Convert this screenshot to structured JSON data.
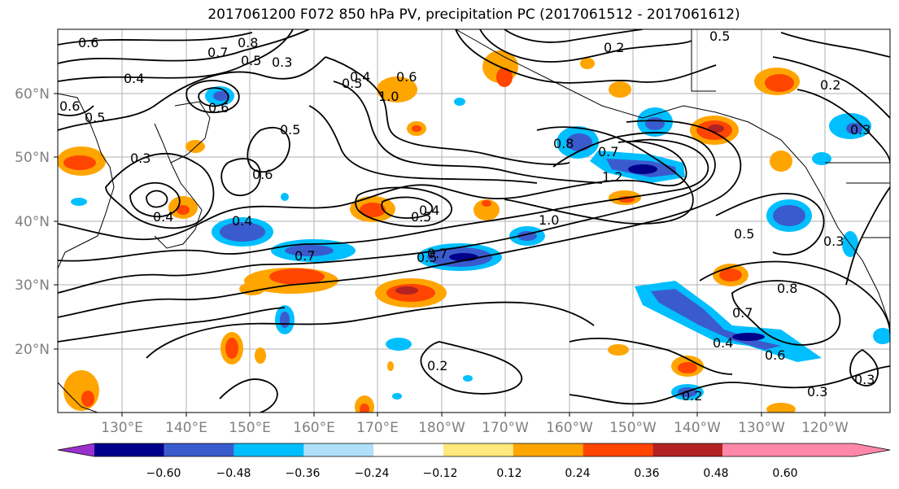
{
  "title": "2017061200 F072 850 hPa PV, precipitation PC (2017061512 - 2017061612)",
  "lat_labels": [
    "60°N",
    "50°N",
    "40°N",
    "30°N",
    "20°N"
  ],
  "lon_labels": [
    "130°E",
    "140°E",
    "150°E",
    "160°E",
    "170°E",
    "180°W",
    "170°W",
    "160°W",
    "150°W",
    "140°W",
    "130°W",
    "120°W"
  ],
  "colorbar": {
    "colors": [
      "#9932cc",
      "#00008b",
      "#3a5bcd",
      "#00bfff",
      "#b0e0fa",
      "#ffffff",
      "#ffe87c",
      "#ffa500",
      "#ff4500",
      "#b22222",
      "#ff88aa"
    ],
    "ticks": [
      "−0.60",
      "−0.48",
      "−0.36",
      "−0.24",
      "−0.12",
      "0.12",
      "0.24",
      "0.36",
      "0.48",
      "0.60"
    ]
  },
  "contour_labels": [
    {
      "text": "0.6"
    },
    {
      "text": "0.7"
    },
    {
      "text": "0.8"
    },
    {
      "text": "0.5"
    },
    {
      "text": "0.3"
    },
    {
      "text": "0.4"
    },
    {
      "text": "0.5"
    },
    {
      "text": "0.6"
    },
    {
      "text": "0.3"
    },
    {
      "text": "0.6"
    },
    {
      "text": "0.4"
    },
    {
      "text": "0.4"
    },
    {
      "text": "0.7"
    },
    {
      "text": "0.6"
    },
    {
      "text": "0.5"
    },
    {
      "text": "0.5"
    },
    {
      "text": "0.4"
    },
    {
      "text": "1.0"
    },
    {
      "text": "0.6"
    },
    {
      "text": "0.5"
    },
    {
      "text": "0.4"
    },
    {
      "text": "0.5"
    },
    {
      "text": "0.7"
    },
    {
      "text": "1.0"
    },
    {
      "text": "0.8"
    },
    {
      "text": "0.7"
    },
    {
      "text": "1.2"
    },
    {
      "text": "0.2"
    },
    {
      "text": "0.5"
    },
    {
      "text": "0.2"
    },
    {
      "text": "0.3"
    },
    {
      "text": "0.5"
    },
    {
      "text": "0.3"
    },
    {
      "text": "0.8"
    },
    {
      "text": "0.7"
    },
    {
      "text": "0.4"
    },
    {
      "text": "0.6"
    },
    {
      "text": "0.3"
    },
    {
      "text": "0.3"
    },
    {
      "text": "0.2"
    },
    {
      "text": "0.2"
    }
  ]
}
